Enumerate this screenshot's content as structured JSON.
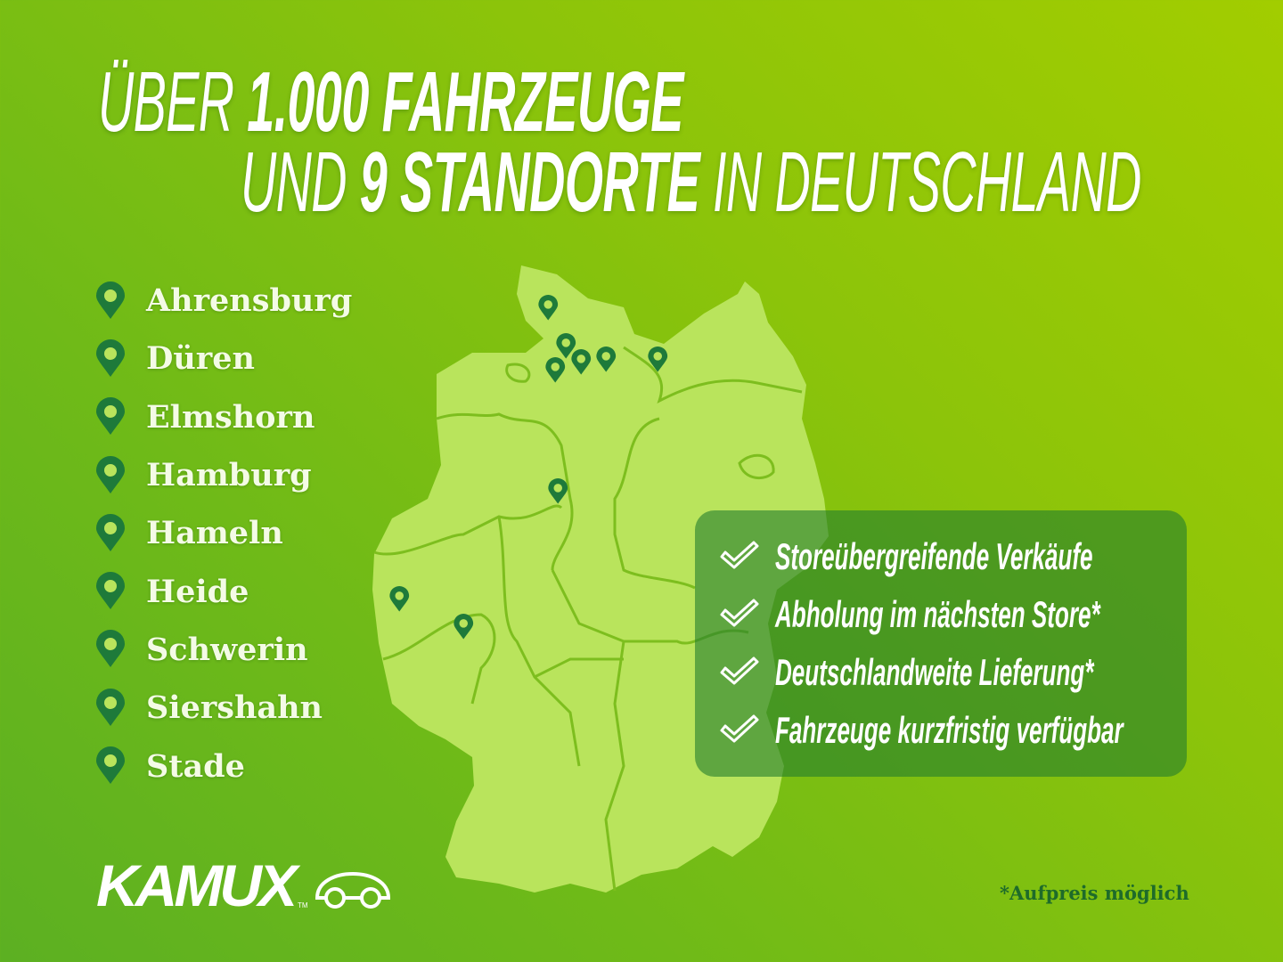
{
  "headline": {
    "line1": [
      {
        "text": "ÜBER ",
        "weight": "light"
      },
      {
        "text": "1.000 FAHRZEUGE",
        "weight": "bold"
      }
    ],
    "line2": [
      {
        "text": "UND ",
        "weight": "light"
      },
      {
        "text": "9 STANDORTE",
        "weight": "bold"
      },
      {
        "text": " IN DEUTSCHLAND",
        "weight": "light"
      }
    ]
  },
  "locations": [
    "Ahrensburg",
    "Düren",
    "Elmshorn",
    "Hamburg",
    "Hameln",
    "Heide",
    "Schwerin",
    "Siershahn",
    "Stade"
  ],
  "features": [
    "Storeübergreifende Verkäufe",
    "Abholung im nächsten Store*",
    "Deutschlandweite Lieferung*",
    "Fahrzeuge kurzfristig verfügbar"
  ],
  "brand": {
    "name": "KAMUX",
    "tm": "TM"
  },
  "footnote": "*Aufpreis möglich",
  "colors": {
    "pin": "#1e7a3a",
    "map": "#b9e45c",
    "box": "#2a8038",
    "accent": "#9ccc00"
  },
  "icons": {
    "location": "map-pin-icon",
    "feature": "checkmark-icon",
    "logo": "car-outline-icon"
  }
}
